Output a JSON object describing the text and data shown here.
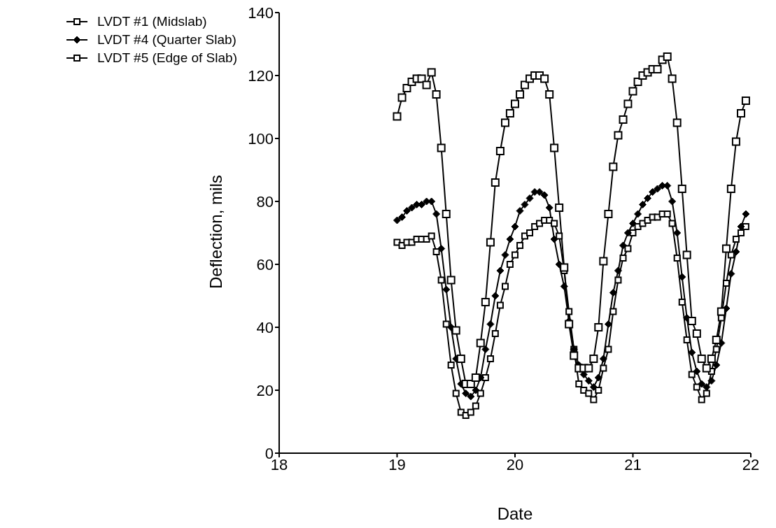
{
  "chart_data": {
    "type": "line",
    "xlabel": "Date",
    "ylabel": "Deflection, mils",
    "x": [
      19.0,
      19.042,
      19.083,
      19.125,
      19.167,
      19.208,
      19.25,
      19.292,
      19.333,
      19.375,
      19.417,
      19.458,
      19.5,
      19.542,
      19.583,
      19.625,
      19.667,
      19.708,
      19.75,
      19.792,
      19.833,
      19.875,
      19.917,
      19.958,
      20.0,
      20.042,
      20.083,
      20.125,
      20.167,
      20.208,
      20.25,
      20.292,
      20.333,
      20.375,
      20.417,
      20.458,
      20.5,
      20.542,
      20.583,
      20.625,
      20.667,
      20.708,
      20.75,
      20.792,
      20.833,
      20.875,
      20.917,
      20.958,
      21.0,
      21.042,
      21.083,
      21.125,
      21.167,
      21.208,
      21.25,
      21.292,
      21.333,
      21.375,
      21.417,
      21.458,
      21.5,
      21.542,
      21.583,
      21.625,
      21.667,
      21.708,
      21.75,
      21.792,
      21.833,
      21.875,
      21.917,
      21.958
    ],
    "series": [
      {
        "name": "LVDT #1 (Midslab)",
        "color": "#000000",
        "marker": "square",
        "values": [
          67,
          66,
          67,
          67,
          68,
          68,
          68,
          69,
          64,
          55,
          41,
          28,
          19,
          13,
          12,
          13,
          15,
          19,
          24,
          30,
          38,
          47,
          53,
          60,
          63,
          66,
          69,
          70,
          72,
          73,
          74,
          74,
          73,
          69,
          58,
          45,
          33,
          22,
          20,
          19,
          17,
          20,
          27,
          33,
          45,
          55,
          62,
          65,
          70,
          72,
          73,
          74,
          75,
          75,
          76,
          76,
          73,
          62,
          48,
          36,
          25,
          21,
          17,
          19,
          26,
          33,
          43,
          54,
          63,
          68,
          70,
          72
        ]
      },
      {
        "name": "LVDT #4 (Quarter Slab)",
        "color": "#000000",
        "marker": "diamond",
        "values": [
          74,
          75,
          77,
          78,
          79,
          79,
          80,
          80,
          76,
          65,
          52,
          40,
          30,
          22,
          19,
          18,
          20,
          24,
          33,
          41,
          50,
          58,
          63,
          68,
          72,
          77,
          79,
          81,
          83,
          83,
          82,
          78,
          68,
          60,
          53,
          42,
          33,
          28,
          25,
          23,
          21,
          24,
          30,
          41,
          51,
          58,
          66,
          70,
          73,
          76,
          79,
          81,
          83,
          84,
          85,
          85,
          80,
          70,
          56,
          43,
          32,
          26,
          22,
          21,
          23,
          28,
          35,
          46,
          57,
          64,
          72,
          76
        ]
      },
      {
        "name": "LVDT #5 (Edge of Slab)",
        "color": "#000000",
        "marker": "square",
        "values": [
          107,
          113,
          116,
          118,
          119,
          119,
          117,
          121,
          114,
          97,
          76,
          55,
          39,
          30,
          22,
          22,
          24,
          35,
          48,
          67,
          86,
          96,
          105,
          108,
          111,
          114,
          117,
          119,
          120,
          120,
          119,
          114,
          97,
          78,
          59,
          41,
          31,
          27,
          27,
          27,
          30,
          40,
          61,
          76,
          91,
          101,
          106,
          111,
          115,
          118,
          120,
          121,
          122,
          122,
          125,
          126,
          119,
          105,
          84,
          63,
          42,
          38,
          30,
          27,
          30,
          36,
          45,
          65,
          84,
          99,
          108,
          112
        ]
      }
    ],
    "xlim": [
      18,
      22
    ],
    "xticks": [
      18,
      19,
      20,
      21,
      22
    ],
    "ylim": [
      0,
      140
    ],
    "yticks": [
      0,
      20,
      40,
      60,
      80,
      100,
      120,
      140
    ],
    "grid": false,
    "legend": "top left"
  }
}
